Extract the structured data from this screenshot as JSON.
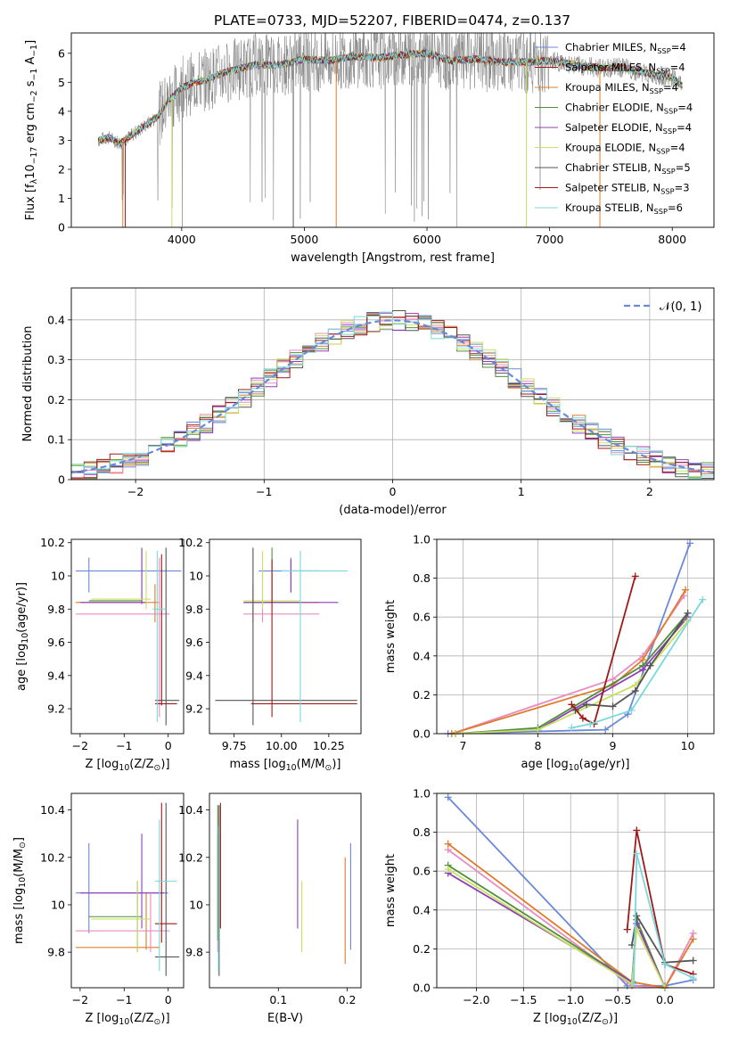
{
  "title": "PLATE=0733, MJD=52207, FIBERID=0474, z=0.137",
  "colors": {
    "c0": "#6a8ad8",
    "c1": "#e07b2a",
    "c2": "#4f8f3a",
    "c3": "#8e3fb8",
    "c4": "#e88bc0",
    "c5": "#c8e060",
    "c6": "#555555",
    "c7": "#a01818",
    "c8": "#78d8dc",
    "obs": "#808080"
  },
  "models": [
    {
      "key": "c0",
      "pre": "Chabrier MILES, N",
      "sub": "SSP",
      "post": "=4"
    },
    {
      "key": "c7",
      "pre": "Salpeter MILES, N",
      "sub": "SSP",
      "post": "=4"
    },
    {
      "key": "c1",
      "pre": "Kroupa MILES, N",
      "sub": "SSP",
      "post": "=4"
    },
    {
      "key": "c2",
      "pre": "Chabrier ELODIE, N",
      "sub": "SSP",
      "post": "=4"
    },
    {
      "key": "c3",
      "pre": "Salpeter ELODIE, N",
      "sub": "SSP",
      "post": "=4"
    },
    {
      "key": "c5",
      "pre": "Kroupa ELODIE, N",
      "sub": "SSP",
      "post": "=4"
    },
    {
      "key": "c6",
      "pre": "Chabrier STELIB, N",
      "sub": "SSP",
      "post": "=5"
    },
    {
      "key": "c7",
      "pre": "Salpeter STELIB, N",
      "sub": "SSP",
      "post": "=3"
    },
    {
      "key": "c8",
      "pre": "Kroupa STELIB, N",
      "sub": "SSP",
      "post": "=6"
    }
  ],
  "chart_data": [
    {
      "id": "spectrum",
      "type": "line",
      "xlabel": "wavelength [Angstrom, rest frame]",
      "ylabel_parts": [
        "Flux [f",
        "λ",
        "10",
        "−17",
        " erg cm",
        "−2",
        " s",
        "−1",
        " A",
        "−1",
        "]"
      ],
      "xlim": [
        3100,
        8340
      ],
      "ylim": [
        0,
        6.7
      ],
      "xticks": [
        4000,
        5000,
        6000,
        7000,
        8000
      ],
      "yticks": [
        0,
        1,
        2,
        3,
        4,
        5,
        6
      ],
      "continuum": [
        [
          3320,
          3.0
        ],
        [
          3400,
          3.1
        ],
        [
          3500,
          2.9
        ],
        [
          3600,
          3.2
        ],
        [
          3700,
          3.5
        ],
        [
          3800,
          3.8
        ],
        [
          3900,
          4.4
        ],
        [
          4000,
          4.8
        ],
        [
          4100,
          5.0
        ],
        [
          4200,
          5.1
        ],
        [
          4400,
          5.4
        ],
        [
          4600,
          5.6
        ],
        [
          4800,
          5.6
        ],
        [
          5000,
          5.8
        ],
        [
          5200,
          5.75
        ],
        [
          5400,
          5.9
        ],
        [
          5600,
          5.85
        ],
        [
          5800,
          5.95
        ],
        [
          6000,
          6.0
        ],
        [
          6200,
          5.75
        ],
        [
          6400,
          5.8
        ],
        [
          6600,
          5.7
        ],
        [
          6800,
          5.7
        ],
        [
          7000,
          5.75
        ],
        [
          7200,
          5.6
        ],
        [
          7400,
          5.5
        ],
        [
          7600,
          5.5
        ],
        [
          7800,
          5.3
        ],
        [
          8000,
          5.15
        ],
        [
          8080,
          4.9
        ]
      ],
      "legend_position": "upper right"
    },
    {
      "id": "residuals",
      "type": "step-histogram",
      "xlabel": "(data-model)/error",
      "ylabel": "Normed distribution",
      "xlim": [
        -2.5,
        2.5
      ],
      "ylim": [
        0,
        0.48
      ],
      "xticks": [
        -2,
        -1,
        0,
        1,
        2
      ],
      "yticks": [
        0.0,
        0.1,
        0.2,
        0.3,
        0.4
      ],
      "bin_width": 0.1,
      "reference": {
        "name": "N(0,1)",
        "label": "𝒩(0, 1)",
        "mean": 0,
        "sigma": 1
      },
      "legend_position": "upper right",
      "grid": true
    },
    {
      "id": "age_vs_Z",
      "type": "errorbar",
      "xlabel_parts": [
        "Z [log",
        "10",
        "(Z/Z",
        "⊙",
        ")]"
      ],
      "ylabel_parts": [
        "age  [log",
        "10",
        "(age/yr)]"
      ],
      "xlim": [
        -2.2,
        0.35
      ],
      "ylim": [
        9.05,
        10.22
      ],
      "xticks": [
        -2,
        -1,
        0
      ],
      "yticks": [
        9.2,
        9.4,
        9.6,
        9.8,
        10.0,
        10.2
      ],
      "points": [
        {
          "c": "c0",
          "x": -1.8,
          "y": 10.03,
          "xe": [
            -2.1,
            0.3
          ],
          "ye": [
            9.9,
            10.11
          ]
        },
        {
          "c": "c1",
          "x": -0.3,
          "y": 9.84,
          "xe": [
            -2.1,
            -0.2
          ],
          "ye": [
            9.72,
            9.95
          ]
        },
        {
          "c": "c2",
          "x": -0.6,
          "y": 9.85,
          "xe": [
            -1.8,
            -0.6
          ],
          "ye": [
            9.84,
            10.17
          ]
        },
        {
          "c": "c3",
          "x": -0.6,
          "y": 9.84,
          "xe": [
            -2.0,
            -0.5
          ],
          "ye": [
            9.83,
            10.16
          ]
        },
        {
          "c": "c4",
          "x": -0.2,
          "y": 9.77,
          "xe": [
            -2.1,
            0.03
          ],
          "ye": [
            9.15,
            10.11
          ]
        },
        {
          "c": "c5",
          "x": -0.5,
          "y": 9.86,
          "xe": [
            -1.75,
            -0.4
          ],
          "ye": [
            9.8,
            10.15
          ]
        },
        {
          "c": "c6",
          "x": -0.05,
          "y": 9.25,
          "xe": [
            -0.3,
            0.25
          ],
          "ye": [
            9.1,
            10.17
          ]
        },
        {
          "c": "c7",
          "x": -0.15,
          "y": 9.23,
          "xe": [
            -0.3,
            0.2
          ],
          "ye": [
            9.22,
            10.13
          ]
        },
        {
          "c": "c8",
          "x": -0.25,
          "y": 9.8,
          "xe": [
            -0.35,
            -0.05
          ],
          "ye": [
            9.12,
            10.15
          ]
        }
      ]
    },
    {
      "id": "age_vs_mass",
      "type": "errorbar",
      "xlabel_parts": [
        "mass [log",
        "10",
        "(M/M",
        "⊙",
        ")]"
      ],
      "xlim": [
        9.62,
        10.42
      ],
      "ylim": [
        9.05,
        10.22
      ],
      "xticks": [
        9.75,
        10.0,
        10.25
      ],
      "xticklabels": [
        "9.75",
        "10.00",
        "10.25"
      ],
      "yticks": [
        9.2,
        9.4,
        9.6,
        9.8,
        10.0,
        10.2
      ],
      "points": [
        {
          "c": "c0",
          "x": 10.05,
          "y": 10.03,
          "xe": [
            9.88,
            10.2
          ],
          "ye": [
            9.9,
            10.11
          ]
        },
        {
          "c": "c1",
          "x": 9.85,
          "y": 9.84,
          "xe": [
            9.81,
            10.2
          ],
          "ye": [
            9.72,
            9.95
          ]
        },
        {
          "c": "c2",
          "x": 9.95,
          "y": 9.84,
          "xe": [
            9.8,
            10.1
          ],
          "ye": [
            9.84,
            10.17
          ]
        },
        {
          "c": "c3",
          "x": 10.05,
          "y": 9.84,
          "xe": [
            9.8,
            10.3
          ],
          "ye": [
            9.9,
            10.1
          ]
        },
        {
          "c": "c4",
          "x": 9.9,
          "y": 9.77,
          "xe": [
            9.8,
            10.2
          ],
          "ye": [
            9.72,
            10.0
          ]
        },
        {
          "c": "c5",
          "x": 9.9,
          "y": 9.85,
          "xe": [
            9.8,
            10.1
          ],
          "ye": [
            9.8,
            10.15
          ]
        },
        {
          "c": "c6",
          "x": 9.85,
          "y": 9.25,
          "xe": [
            9.65,
            10.4
          ],
          "ye": [
            9.1,
            10.17
          ]
        },
        {
          "c": "c7",
          "x": 9.95,
          "y": 9.23,
          "xe": [
            9.84,
            10.4
          ],
          "ye": [
            9.15,
            10.1
          ]
        },
        {
          "c": "c8",
          "x": 10.1,
          "y": 10.03,
          "xe": [
            10.0,
            10.35
          ],
          "ye": [
            9.12,
            10.15
          ]
        }
      ]
    },
    {
      "id": "mass_weight_vs_age",
      "type": "line",
      "xlabel_parts": [
        "age  [log",
        "10",
        "(age/yr)]"
      ],
      "ylabel": "mass weight",
      "xlim": [
        6.65,
        10.35
      ],
      "ylim": [
        0,
        1
      ],
      "xticks": [
        7,
        8,
        9,
        10
      ],
      "yticks": [
        0,
        0.2,
        0.4,
        0.6,
        0.8,
        1.0
      ],
      "yticklabels": [
        "0.0",
        "0.2",
        "0.4",
        "0.6",
        "0.8",
        "1.0"
      ],
      "grid": true,
      "series": [
        {
          "c": "c0",
          "x": [
            6.8,
            8.9,
            9.2,
            10.03
          ],
          "y": [
            0.0,
            0.02,
            0.1,
            0.98
          ]
        },
        {
          "c": "c4",
          "x": [
            6.85,
            9.0,
            9.4,
            9.95
          ],
          "y": [
            0.0,
            0.28,
            0.4,
            0.71
          ]
        },
        {
          "c": "c1",
          "x": [
            6.85,
            9.0,
            9.4,
            9.97
          ],
          "y": [
            0.0,
            0.25,
            0.38,
            0.74
          ]
        },
        {
          "c": "c2",
          "x": [
            6.9,
            8.0,
            9.4,
            10.0
          ],
          "y": [
            0.0,
            0.03,
            0.35,
            0.62
          ]
        },
        {
          "c": "c3",
          "x": [
            6.9,
            8.0,
            9.4,
            10.0
          ],
          "y": [
            0.0,
            0.02,
            0.33,
            0.6
          ]
        },
        {
          "c": "c5",
          "x": [
            6.9,
            8.0,
            9.3,
            10.0
          ],
          "y": [
            0.0,
            0.02,
            0.25,
            0.58
          ]
        },
        {
          "c": "c6",
          "x": [
            8.5,
            8.65,
            9.0,
            9.3,
            9.5,
            10.0
          ],
          "y": [
            0.12,
            0.15,
            0.14,
            0.22,
            0.35,
            0.62
          ]
        },
        {
          "c": "c7",
          "x": [
            8.45,
            8.6,
            8.75,
            9.3
          ],
          "y": [
            0.15,
            0.08,
            0.05,
            0.81
          ]
        },
        {
          "c": "c8",
          "x": [
            8.45,
            8.7,
            9.25,
            10.2
          ],
          "y": [
            0.03,
            0.05,
            0.12,
            0.69
          ]
        }
      ]
    },
    {
      "id": "mass_vs_Z",
      "type": "errorbar",
      "xlabel_parts": [
        "Z [log",
        "10",
        "(Z/Z",
        "⊙",
        ")]"
      ],
      "ylabel_parts": [
        "mass [log",
        "10",
        "(M/M",
        "⊙",
        "]"
      ],
      "xlim": [
        -2.2,
        0.35
      ],
      "ylim": [
        9.65,
        10.47
      ],
      "xticks": [
        -2,
        -1,
        0
      ],
      "yticks": [
        9.8,
        10.0,
        10.2,
        10.4
      ],
      "points": [
        {
          "c": "c0",
          "x": -1.8,
          "y": 10.05,
          "xe": [
            -2.1,
            0.0
          ],
          "ye": [
            9.88,
            10.26
          ]
        },
        {
          "c": "c1",
          "x": -0.5,
          "y": 9.82,
          "xe": [
            -2.1,
            -0.2
          ],
          "ye": [
            9.81,
            10.05
          ]
        },
        {
          "c": "c2",
          "x": -0.7,
          "y": 9.95,
          "xe": [
            -1.8,
            -0.6
          ],
          "ye": [
            9.8,
            10.1
          ]
        },
        {
          "c": "c3",
          "x": -0.6,
          "y": 10.05,
          "xe": [
            -2.0,
            -0.1
          ],
          "ye": [
            9.9,
            10.3
          ]
        },
        {
          "c": "c4",
          "x": -0.4,
          "y": 9.89,
          "xe": [
            -2.1,
            0.03
          ],
          "ye": [
            9.8,
            10.05
          ]
        },
        {
          "c": "c5",
          "x": -0.7,
          "y": 9.94,
          "xe": [
            -1.75,
            -0.4
          ],
          "ye": [
            9.8,
            10.1
          ]
        },
        {
          "c": "c6",
          "x": -0.05,
          "y": 9.78,
          "xe": [
            -0.3,
            0.25
          ],
          "ye": [
            9.7,
            10.43
          ]
        },
        {
          "c": "c7",
          "x": -0.15,
          "y": 9.92,
          "xe": [
            -0.3,
            0.2
          ],
          "ye": [
            9.84,
            10.43
          ]
        },
        {
          "c": "c8",
          "x": -0.2,
          "y": 10.1,
          "xe": [
            -0.3,
            0.2
          ],
          "ye": [
            9.72,
            10.36
          ]
        }
      ]
    },
    {
      "id": "mass_vs_EBV",
      "type": "errorbar",
      "xlabel": "E(B-V)",
      "xlim": [
        0.0,
        0.22
      ],
      "ylim": [
        9.65,
        10.47
      ],
      "xticks": [
        0.1,
        0.2
      ],
      "xticklabels": [
        "0.1",
        "0.2"
      ],
      "yticks": [
        9.8,
        10.0,
        10.2,
        10.4
      ],
      "points": [
        {
          "c": "c0",
          "x": 0.205,
          "ye": [
            9.81,
            10.26
          ]
        },
        {
          "c": "c1",
          "x": 0.197,
          "ye": [
            9.75,
            10.2
          ]
        },
        {
          "c": "c3",
          "x": 0.128,
          "ye": [
            9.9,
            10.36
          ]
        },
        {
          "c": "c5",
          "x": 0.134,
          "ye": [
            9.8,
            10.1
          ]
        },
        {
          "c": "c4",
          "x": 0.012,
          "ye": [
            9.8,
            10.3
          ]
        },
        {
          "c": "c2",
          "x": 0.012,
          "ye": [
            9.85,
            10.42
          ]
        },
        {
          "c": "c6",
          "x": 0.014,
          "ye": [
            9.7,
            10.42
          ]
        },
        {
          "c": "c7",
          "x": 0.016,
          "ye": [
            9.9,
            10.43
          ]
        },
        {
          "c": "c8",
          "x": 0.013,
          "ye": [
            9.72,
            10.33
          ]
        }
      ]
    },
    {
      "id": "mass_weight_vs_Z",
      "type": "line",
      "xlabel_parts": [
        "Z [log",
        "10",
        "(Z/Z",
        "⊙",
        ")]"
      ],
      "ylabel": "mass weight",
      "xlim": [
        -2.42,
        0.52
      ],
      "ylim": [
        0,
        1
      ],
      "xticks": [
        -2.0,
        -1.5,
        -1.0,
        -0.5,
        0.0
      ],
      "xticklabels": [
        "−2.0",
        "−1.5",
        "−1.0",
        "−0.5",
        "0.0"
      ],
      "yticks": [
        0,
        0.2,
        0.4,
        0.6,
        0.8,
        1.0
      ],
      "yticklabels": [
        "0.0",
        "0.2",
        "0.4",
        "0.6",
        "0.8",
        "1.0"
      ],
      "grid": true,
      "series": [
        {
          "c": "c0",
          "x": [
            -2.3,
            -0.4,
            0.0,
            0.3
          ],
          "y": [
            0.98,
            0.01,
            0.01,
            0.04
          ]
        },
        {
          "c": "c4",
          "x": [
            -2.3,
            -0.35,
            0.0,
            0.3
          ],
          "y": [
            0.71,
            0.01,
            0.0,
            0.28
          ]
        },
        {
          "c": "c1",
          "x": [
            -2.3,
            -0.35,
            0.0,
            0.3
          ],
          "y": [
            0.74,
            0.03,
            0.0,
            0.25
          ]
        },
        {
          "c": "c2",
          "x": [
            -2.3,
            -0.35,
            -0.3,
            0.0
          ],
          "y": [
            0.63,
            0.03,
            0.35,
            0.0
          ]
        },
        {
          "c": "c3",
          "x": [
            -2.3,
            -0.35,
            -0.3,
            0.0
          ],
          "y": [
            0.59,
            0.03,
            0.33,
            0.0
          ]
        },
        {
          "c": "c5",
          "x": [
            -2.3,
            -0.35,
            -0.3,
            0.0
          ],
          "y": [
            0.61,
            0.02,
            0.3,
            0.0
          ]
        },
        {
          "c": "c6",
          "x": [
            -0.35,
            -0.3,
            0.0,
            0.3
          ],
          "y": [
            0.22,
            0.37,
            0.13,
            0.14
          ]
        },
        {
          "c": "c7",
          "x": [
            -0.4,
            -0.3,
            0.0,
            0.3
          ],
          "y": [
            0.3,
            0.81,
            0.12,
            0.07
          ]
        },
        {
          "c": "c8",
          "x": [
            -0.33,
            -0.3,
            0.0,
            0.3
          ],
          "y": [
            0.02,
            0.69,
            0.12,
            0.05
          ]
        }
      ]
    }
  ]
}
